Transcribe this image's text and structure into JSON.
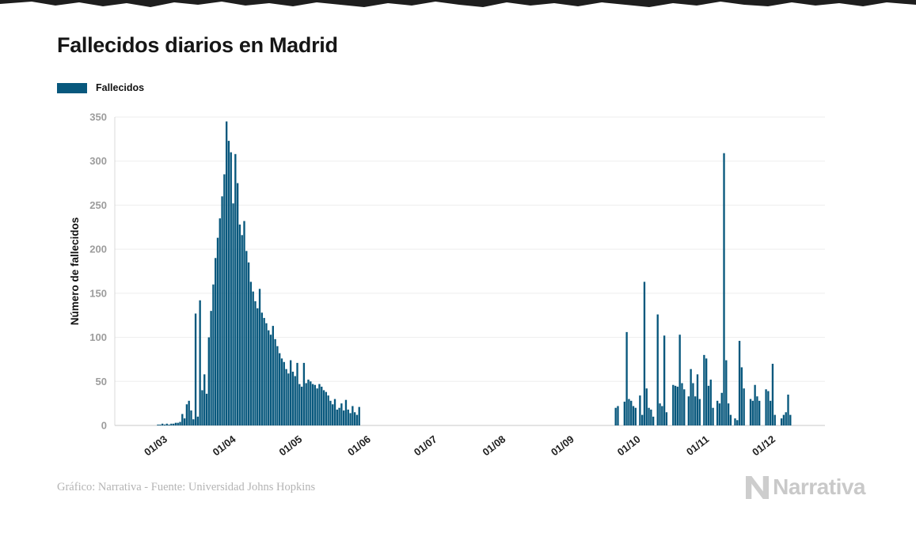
{
  "title": "Fallecidos diarios en Madrid",
  "legend": {
    "label": "Fallecidos"
  },
  "footer": {
    "credit": "Gráfico: Narrativa - Fuente: Universidad Johns Hopkins",
    "logo_text": "Narrativa"
  },
  "colors": {
    "bar": "#08587D",
    "grid": "#ededed",
    "axis": "#c9c9c9",
    "axis_left": "#d8d8d8",
    "y_tick_text": "#9c9c9c",
    "x_tick_text": "#1f1f1f",
    "text": "#161616"
  },
  "chart_data": {
    "type": "bar",
    "title": "Fallecidos diarios en Madrid",
    "series_name": "Fallecidos",
    "xlabel": "",
    "ylabel": "Número de fallecidos",
    "ylim": [
      0,
      350
    ],
    "yticks": [
      0,
      50,
      100,
      150,
      200,
      250,
      300,
      350
    ],
    "grid": "horizontal",
    "legend_position": "top-left",
    "x_start_date": "26/02/2020",
    "x_tick_labels": [
      "01/03",
      "01/04",
      "01/05",
      "01/06",
      "01/07",
      "01/08",
      "01/09",
      "01/10",
      "01/11",
      "01/12"
    ],
    "x_tick_day_index": [
      4,
      35,
      65,
      96,
      126,
      157,
      188,
      218,
      249,
      279
    ],
    "values": [
      0,
      0,
      1,
      1,
      2,
      1,
      2,
      1,
      2,
      2,
      3,
      3,
      4,
      13,
      8,
      24,
      28,
      17,
      7,
      127,
      10,
      142,
      40,
      58,
      36,
      100,
      130,
      160,
      190,
      213,
      235,
      260,
      285,
      345,
      323,
      310,
      252,
      308,
      275,
      228,
      216,
      232,
      198,
      185,
      163,
      152,
      141,
      133,
      155,
      128,
      122,
      116,
      108,
      103,
      113,
      98,
      90,
      82,
      76,
      72,
      64,
      59,
      74,
      61,
      56,
      71,
      47,
      44,
      71,
      48,
      52,
      50,
      47,
      46,
      42,
      47,
      44,
      40,
      38,
      34,
      28,
      24,
      30,
      18,
      20,
      25,
      17,
      29,
      18,
      14,
      22,
      15,
      12,
      21,
      0,
      0,
      0,
      0,
      0,
      0,
      0,
      0,
      0,
      0,
      0,
      0,
      0,
      0,
      0,
      0,
      0,
      0,
      0,
      0,
      0,
      0,
      0,
      0,
      0,
      0,
      0,
      0,
      0,
      0,
      0,
      0,
      0,
      0,
      0,
      0,
      0,
      0,
      0,
      0,
      0,
      0,
      0,
      0,
      0,
      0,
      0,
      0,
      0,
      0,
      0,
      0,
      0,
      0,
      0,
      0,
      0,
      0,
      0,
      0,
      0,
      0,
      0,
      0,
      0,
      0,
      0,
      0,
      0,
      0,
      0,
      0,
      0,
      0,
      0,
      0,
      0,
      0,
      0,
      0,
      0,
      0,
      0,
      0,
      0,
      0,
      0,
      0,
      0,
      0,
      0,
      0,
      0,
      0,
      0,
      0,
      0,
      0,
      0,
      0,
      0,
      0,
      0,
      0,
      0,
      0,
      0,
      0,
      0,
      0,
      0,
      0,
      0,
      0,
      0,
      20,
      22,
      0,
      0,
      27,
      106,
      30,
      28,
      22,
      20,
      0,
      34,
      12,
      163,
      42,
      20,
      18,
      10,
      0,
      126,
      25,
      22,
      102,
      15,
      0,
      0,
      46,
      45,
      44,
      103,
      48,
      41,
      0,
      33,
      64,
      48,
      33,
      58,
      30,
      0,
      80,
      76,
      45,
      52,
      20,
      0,
      28,
      25,
      37,
      309,
      74,
      25,
      12,
      0,
      8,
      6,
      96,
      66,
      42,
      0,
      0,
      30,
      28,
      46,
      33,
      28,
      0,
      0,
      41,
      39,
      28,
      70,
      12,
      0,
      0,
      8,
      12,
      15,
      35,
      12
    ]
  }
}
